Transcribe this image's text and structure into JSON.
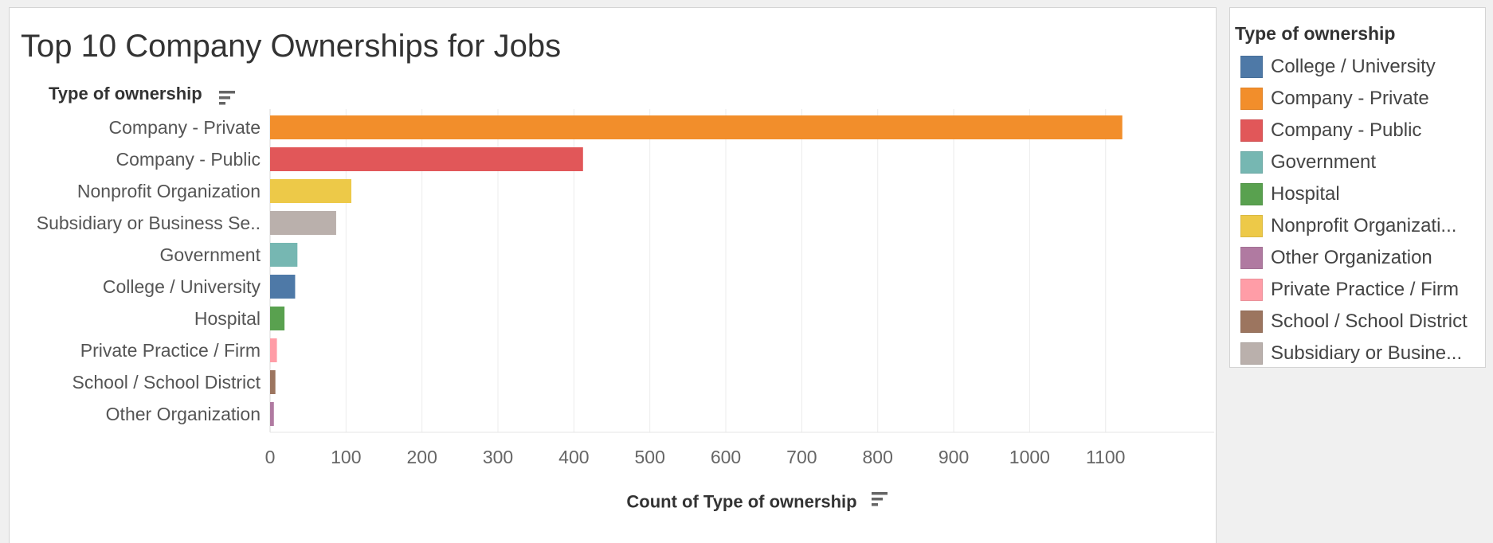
{
  "title": "Top 10 Company Ownerships for Jobs",
  "legend": {
    "title": "Type of ownership",
    "items": [
      {
        "label": "College / University",
        "color": "#4e79a7"
      },
      {
        "label": "Company - Private",
        "color": "#f28e2b"
      },
      {
        "label": "Company - Public",
        "color": "#e15759"
      },
      {
        "label": "Government",
        "color": "#76b7b2"
      },
      {
        "label": "Hospital",
        "color": "#59a14f"
      },
      {
        "label": "Nonprofit Organizati...",
        "color": "#edc948"
      },
      {
        "label": "Other Organization",
        "color": "#b07aa1"
      },
      {
        "label": "Private Practice / Firm",
        "color": "#ff9da7"
      },
      {
        "label": "School / School District",
        "color": "#9c755f"
      },
      {
        "label": "Subsidiary or Busine...",
        "color": "#bab0ac"
      }
    ]
  },
  "sort_icon": "sort-descending-icon",
  "chart_data": {
    "type": "bar",
    "orientation": "horizontal",
    "title": "Top 10 Company Ownerships for Jobs",
    "ylabel": "Type of ownership",
    "xlabel": "Count of Type of ownership",
    "categories": [
      "Company - Private",
      "Company - Public",
      "Nonprofit Organization",
      "Subsidiary or Business Se..",
      "Government",
      "College / University",
      "Hospital",
      "Private Practice / Firm",
      "School / School District",
      "Other Organization"
    ],
    "values": [
      1122,
      412,
      107,
      87,
      36,
      33,
      19,
      9,
      7,
      5
    ],
    "colors": [
      "#f28e2b",
      "#e15759",
      "#edc948",
      "#bab0ac",
      "#76b7b2",
      "#4e79a7",
      "#59a14f",
      "#ff9da7",
      "#9c755f",
      "#b07aa1"
    ],
    "xlim": [
      0,
      1180
    ],
    "xticks": [
      0,
      100,
      200,
      300,
      400,
      500,
      600,
      700,
      800,
      900,
      1000,
      1100
    ],
    "grid": true,
    "legend_position": "right"
  }
}
